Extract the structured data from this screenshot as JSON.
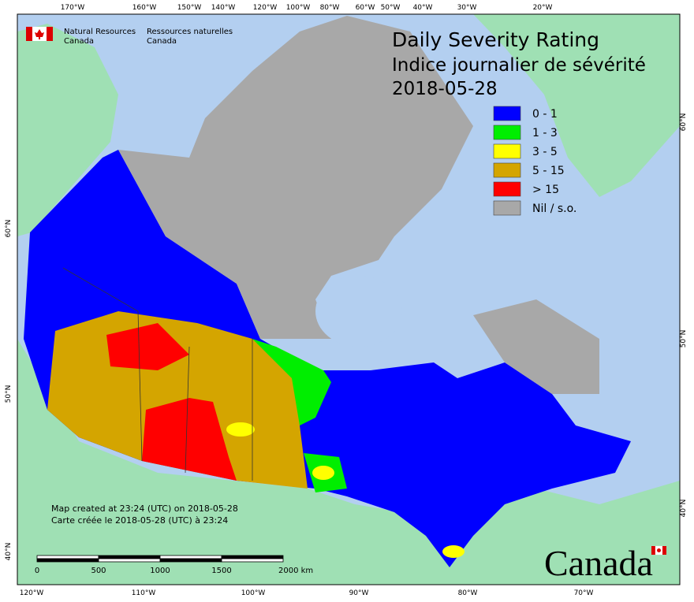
{
  "header": {
    "agency_en": [
      "Natural Resources",
      "Canada"
    ],
    "agency_fr": [
      "Ressources naturelles",
      "Canada"
    ]
  },
  "title": {
    "en": "Daily Severity Rating",
    "fr": "Indice journalier de sévérité",
    "date": "2018-05-28"
  },
  "legend": [
    {
      "label": "0 - 1",
      "color": "#0000ff"
    },
    {
      "label": "1 - 3",
      "color": "#00ee00"
    },
    {
      "label": "3 - 5",
      "color": "#ffff00"
    },
    {
      "label": "5 - 15",
      "color": "#d4a500"
    },
    {
      "label": "> 15",
      "color": "#ff0000"
    },
    {
      "label": "Nil / s.o.",
      "color": "#a8a8a8"
    }
  ],
  "credits": [
    "Map created at 23:24 (UTC) on 2018-05-28",
    "Carte créée le 2018-05-28 (UTC) à 23:24"
  ],
  "scale_bar": {
    "labels": [
      "0",
      "500",
      "1000",
      "1500",
      "2000 km"
    ]
  },
  "graticule": {
    "top": [
      "170°W",
      "160°W",
      "150°W",
      "140°W",
      "120°W",
      "100°W",
      "80°W",
      "60°W",
      "50°W",
      "40°W",
      "30°W",
      "20°W"
    ],
    "bottom": [
      "120°W",
      "110°W",
      "100°W",
      "90°W",
      "80°W",
      "70°W"
    ],
    "left": [
      "60°N",
      "50°N",
      "40°N"
    ],
    "right": [
      "60°N",
      "50°N",
      "40°N"
    ]
  },
  "wordmark": "Canada"
}
